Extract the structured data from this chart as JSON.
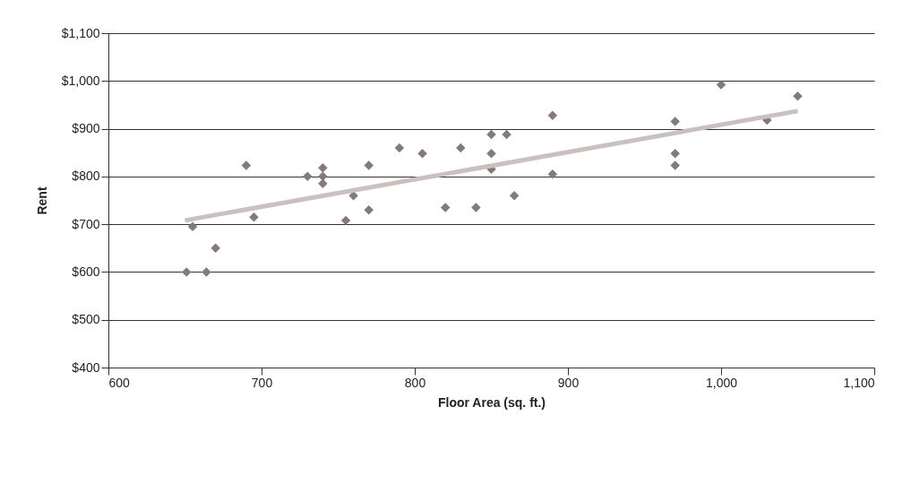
{
  "chart_data": {
    "type": "scatter",
    "xlabel": "Floor Area (sq. ft.)",
    "ylabel": "Rent",
    "xlim": [
      600,
      1100
    ],
    "xticks": [
      600,
      700,
      800,
      900,
      {
        "value": 1000,
        "label": "1,000"
      },
      {
        "value": 1100,
        "label": "1,100"
      }
    ],
    "ylim": [
      400,
      1100
    ],
    "yticks": [
      {
        "value": 400,
        "label": "$400"
      },
      {
        "value": 500,
        "label": "$500"
      },
      {
        "value": 600,
        "label": "$600"
      },
      {
        "value": 700,
        "label": "$700"
      },
      {
        "value": 800,
        "label": "$800"
      },
      {
        "value": 900,
        "label": "$900"
      },
      {
        "value": 1000,
        "label": "$1,000"
      },
      {
        "value": 1100,
        "label": "$1,100"
      }
    ],
    "grid": "y",
    "marker": "diamond",
    "series": [
      {
        "color": "#857a78",
        "x": [
          651,
          655,
          664,
          670,
          690,
          695,
          730,
          740,
          740,
          740,
          755,
          760,
          770,
          770,
          790,
          805,
          820,
          830,
          840,
          850,
          850,
          850,
          860,
          865,
          890,
          890,
          970,
          970,
          970,
          1000,
          1030,
          1050
        ],
        "values": [
          600,
          695,
          600,
          650,
          823,
          715,
          800,
          818,
          800,
          785,
          708,
          760,
          823,
          730,
          860,
          848,
          735,
          860,
          735,
          888,
          848,
          815,
          888,
          760,
          928,
          805,
          915,
          848,
          823,
          992,
          918,
          968
        ]
      },
      {
        "type": "line",
        "color": "#c9c1bf",
        "line_style": "solid",
        "marker": "none",
        "x": [
          650,
          1050
        ],
        "values": [
          708,
          937
        ]
      }
    ]
  }
}
